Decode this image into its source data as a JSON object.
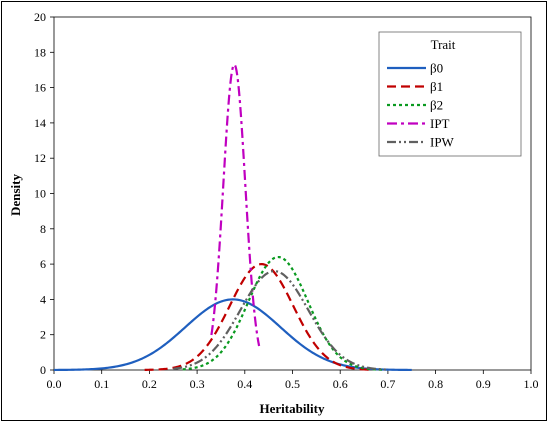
{
  "chart_data": {
    "type": "line",
    "xlabel": "Heritability",
    "ylabel": "Density",
    "xlim": [
      0.0,
      1.0
    ],
    "ylim": [
      0,
      20
    ],
    "x_ticks": [
      "0.0",
      "0.1",
      "0.2",
      "0.3",
      "0.4",
      "0.5",
      "0.6",
      "0.7",
      "0.8",
      "0.9",
      "1.0"
    ],
    "y_ticks": [
      "0",
      "2",
      "4",
      "6",
      "8",
      "10",
      "12",
      "14",
      "16",
      "18",
      "20"
    ],
    "legend_title": "Trait",
    "legend_position": "top-right",
    "grid": false,
    "series": [
      {
        "name": "β0",
        "color": "#1f5fbf",
        "dash": "solid",
        "peak_x": 0.375,
        "peak_density": 4.0,
        "x_range": [
          0.0,
          0.75
        ]
      },
      {
        "name": "β1",
        "color": "#c00000",
        "dash": "dashed",
        "peak_x": 0.435,
        "peak_density": 6.0,
        "x_range": [
          0.19,
          0.67
        ]
      },
      {
        "name": "β2",
        "color": "#0a9a20",
        "dash": "dotted",
        "peak_x": 0.47,
        "peak_density": 6.4,
        "x_range": [
          0.27,
          0.69
        ]
      },
      {
        "name": "IPT",
        "color": "#c000c0",
        "dash": "dashdot",
        "peak_x": 0.378,
        "peak_density": 17.3,
        "x_range": [
          0.33,
          0.43
        ]
      },
      {
        "name": "IPW",
        "color": "#606060",
        "dash": "dashdotdot",
        "peak_x": 0.462,
        "peak_density": 5.6,
        "x_range": [
          0.25,
          0.7
        ]
      }
    ]
  }
}
